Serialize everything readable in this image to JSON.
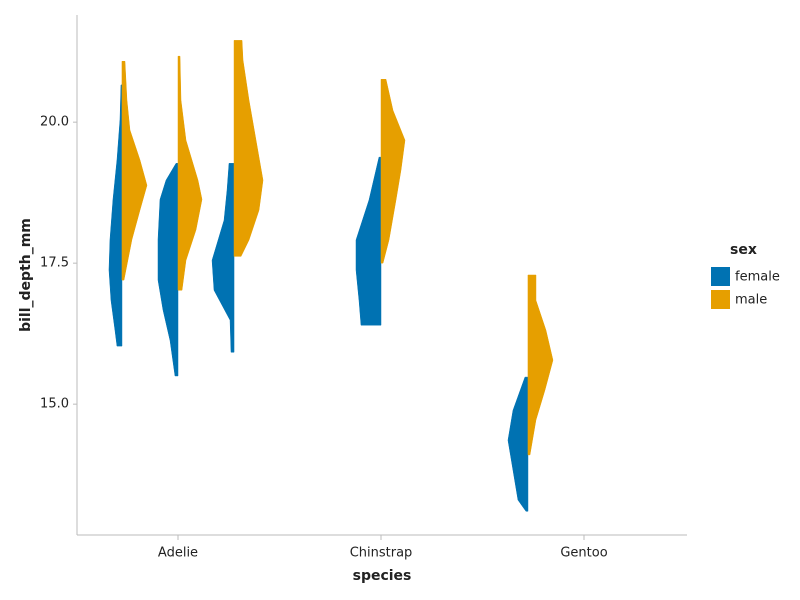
{
  "chart_data": {
    "type": "violin",
    "x_label": "species",
    "y_label": "bill_depth_mm",
    "categories": [
      "Adelie",
      "Chinstrap",
      "Gentoo"
    ],
    "legend_title": "sex",
    "legend": "right",
    "series": [
      {
        "name": "female",
        "color": "#0072b2"
      },
      {
        "name": "male",
        "color": "#e69f00"
      }
    ],
    "ylim": [
      12.68,
      21.9
    ],
    "yticks": [
      {
        "value": 15,
        "label": "15.0"
      },
      {
        "value": 17.5,
        "label": "17.5"
      },
      {
        "value": 20,
        "label": "20.0"
      }
    ],
    "violins": [
      [
        [
          {
            "y": [
              20.66,
              20.04,
              19.33,
              18.63,
              17.92,
              17.38,
              16.84,
              16.31,
              16.03
            ],
            "density": [
              0.1,
              0.2,
              0.5,
              0.9,
              1.2,
              1.3,
              1.1,
              0.7,
              0.5
            ]
          },
          {
            "y": [
              21.08,
              20.39,
              19.86,
              19.33,
              18.88,
              18.44,
              17.92,
              17.38,
              17.2
            ],
            "density": [
              0.3,
              0.5,
              0.8,
              1.8,
              2.5,
              1.8,
              1.0,
              0.4,
              0.2
            ]
          }
        ],
        [
          {
            "y": [
              19.27,
              18.97,
              18.63,
              17.92,
              17.2,
              16.67,
              16.13,
              15.5
            ],
            "density": [
              0.2,
              1.2,
              1.8,
              2.0,
              2.0,
              1.5,
              0.8,
              0.3
            ]
          },
          {
            "y": [
              21.17,
              20.39,
              19.68,
              18.97,
              18.63,
              18.09,
              17.55,
              17.02
            ],
            "density": [
              0.2,
              0.3,
              0.8,
              2.0,
              2.4,
              1.8,
              0.8,
              0.4
            ]
          }
        ],
        [
          {
            "y": [
              19.27,
              18.79,
              18.26,
              17.55,
              17.02,
              16.49,
              15.92
            ],
            "density": [
              0.5,
              0.7,
              1.0,
              2.2,
              2.0,
              0.4,
              0.3
            ]
          },
          {
            "y": [
              21.45,
              21.1,
              20.39,
              19.68,
              18.97,
              18.44,
              17.91,
              17.62
            ],
            "density": [
              0.8,
              0.9,
              1.5,
              2.2,
              2.9,
              2.5,
              1.5,
              0.7
            ]
          }
        ]
      ],
      [
        null,
        [
          {
            "y": [
              19.38,
              18.62,
              17.91,
              17.38,
              16.84,
              16.4
            ],
            "density": [
              0.2,
              1.2,
              2.5,
              2.5,
              2.2,
              2.0
            ]
          },
          {
            "y": [
              20.76,
              20.21,
              19.68,
              19.15,
              18.62,
              17.91,
              17.5
            ],
            "density": [
              0.5,
              1.2,
              2.4,
              2.0,
              1.5,
              0.8,
              0.2
            ]
          }
        ],
        null
      ],
      [
        [
          {
            "y": [
              15.48,
              14.89,
              14.36,
              13.83,
              13.3,
              13.1
            ],
            "density": [
              0.3,
              1.5,
              2.0,
              1.5,
              1.0,
              0.2
            ]
          },
          {
            "y": [
              17.29,
              16.84,
              16.31,
              15.78,
              15.25,
              14.72,
              14.1
            ],
            "density": [
              0.8,
              0.8,
              1.8,
              2.5,
              1.7,
              0.8,
              0.2
            ]
          }
        ],
        null,
        null
      ]
    ]
  }
}
